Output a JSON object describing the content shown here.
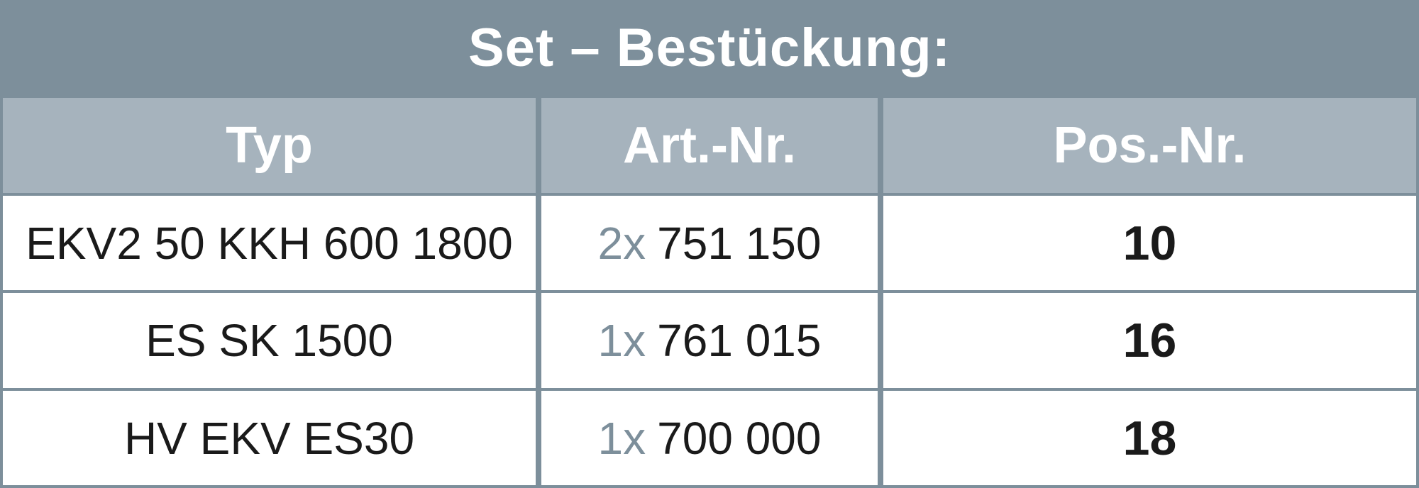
{
  "title": "Set – Bestückung:",
  "table": {
    "headers": [
      "Typ",
      "Art.-Nr.",
      "Pos.-Nr."
    ],
    "rows": [
      {
        "typ": "EKV2 50 KKH 600 1800",
        "qty": "2x",
        "art": "751 150",
        "pos": "10"
      },
      {
        "typ": "ES SK 1500",
        "qty": "1x",
        "art": "761 015",
        "pos": "16"
      },
      {
        "typ": "HV EKV ES30",
        "qty": "1x",
        "art": "700 000",
        "pos": "18"
      }
    ]
  }
}
